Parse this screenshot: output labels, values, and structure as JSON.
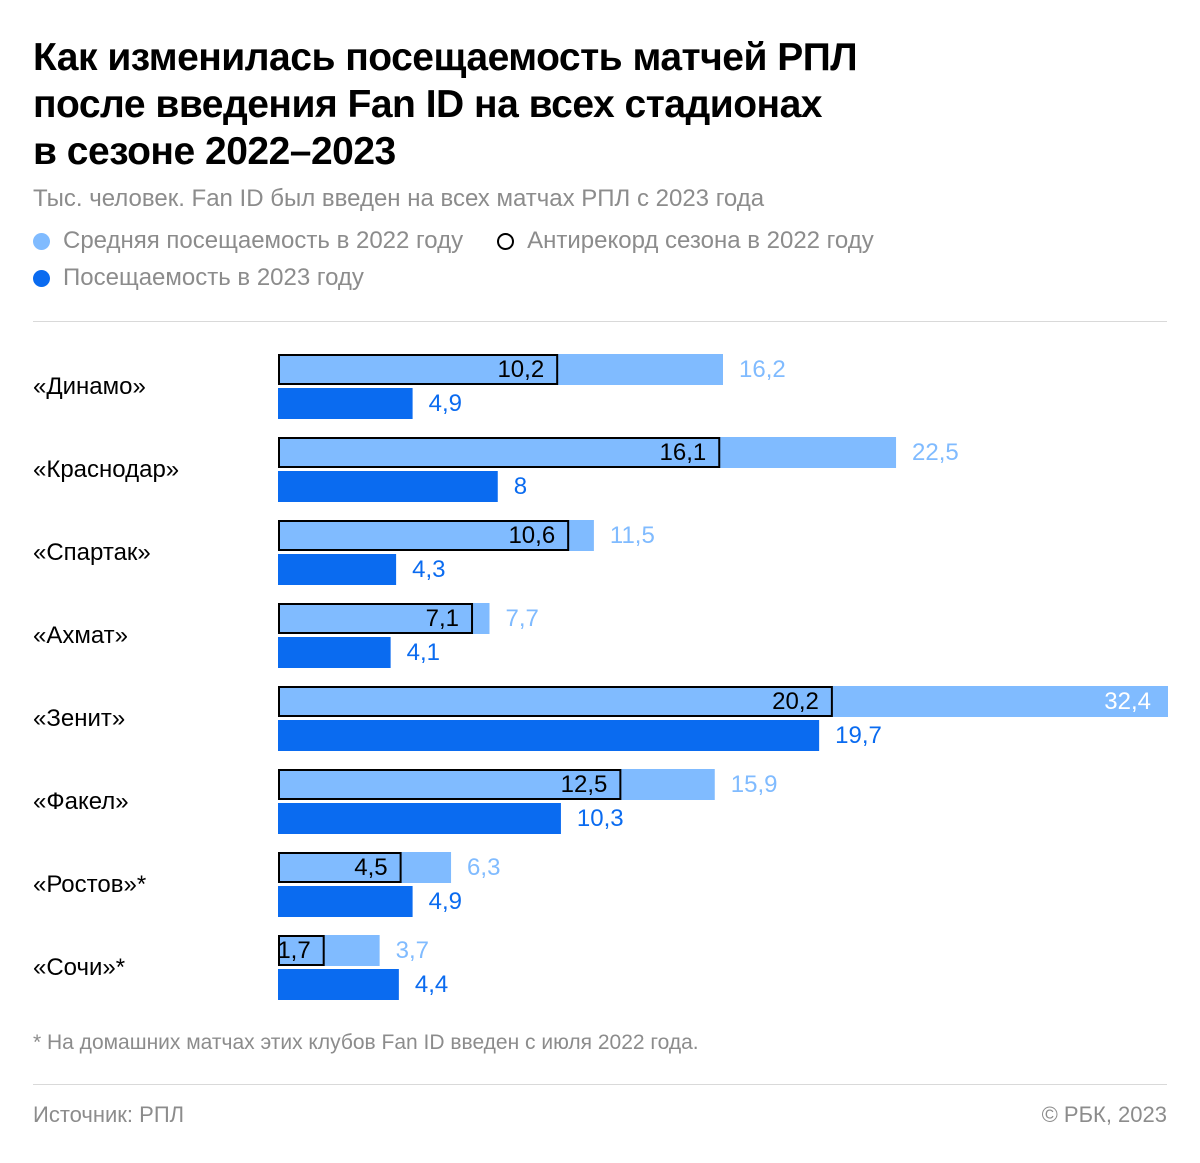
{
  "title_lines": [
    "Как изменилась посещаемость матчей РПЛ",
    "после введения Fan ID на всех стадионах",
    "в сезоне 2022–2023"
  ],
  "subtitle": "Тыс. человек. Fan ID был введен на всех матчах РПЛ с 2023 года",
  "legend": {
    "avg_2022": "Средняя посещаемость в 2022 году",
    "low_2022": "Антирекорд сезона в 2022 году",
    "att_2023": "Посещаемость в 2023 году"
  },
  "colors": {
    "avg_2022": "#80bbff",
    "att_2023": "#0a6bf0",
    "low_outline": "#000000",
    "muted_text": "#8c8c8c",
    "rule": "#d9d9d9"
  },
  "chart_data": {
    "type": "bar",
    "orientation": "horizontal",
    "categories": [
      "«Динамо»",
      "«Краснодар»",
      "«Спартак»",
      "«Ахмат»",
      "«Зенит»",
      "«Факел»",
      "«Ростов»*",
      "«Сочи»*"
    ],
    "series": [
      {
        "name": "Средняя посещаемость в 2022 году",
        "values": [
          16.2,
          22.5,
          11.5,
          7.7,
          32.4,
          15.9,
          6.3,
          3.7
        ],
        "labels": [
          "16,2",
          "22,5",
          "11,5",
          "7,7",
          "32,4",
          "15,9",
          "6,3",
          "3,7"
        ]
      },
      {
        "name": "Антирекорд сезона в 2022 году",
        "values": [
          10.2,
          16.1,
          10.6,
          7.1,
          20.2,
          12.5,
          4.5,
          1.7
        ],
        "labels": [
          "10,2",
          "16,1",
          "10,6",
          "7,1",
          "20,2",
          "12,5",
          "4,5",
          "1,7"
        ]
      },
      {
        "name": "Посещаемость в 2023 году",
        "values": [
          4.9,
          8,
          4.3,
          4.1,
          19.7,
          10.3,
          4.9,
          4.4
        ],
        "labels": [
          "4,9",
          "8",
          "4,3",
          "4,1",
          "19,7",
          "10,3",
          "4,9",
          "4,4"
        ]
      }
    ],
    "xlim": [
      0,
      32.4
    ],
    "grid": false,
    "legend_position": "top-left"
  },
  "footnote": "* На домашних матчах этих клубов Fan ID введен с июля 2022 года.",
  "source": "Источник: РПЛ",
  "copyright": "© РБК, 2023"
}
